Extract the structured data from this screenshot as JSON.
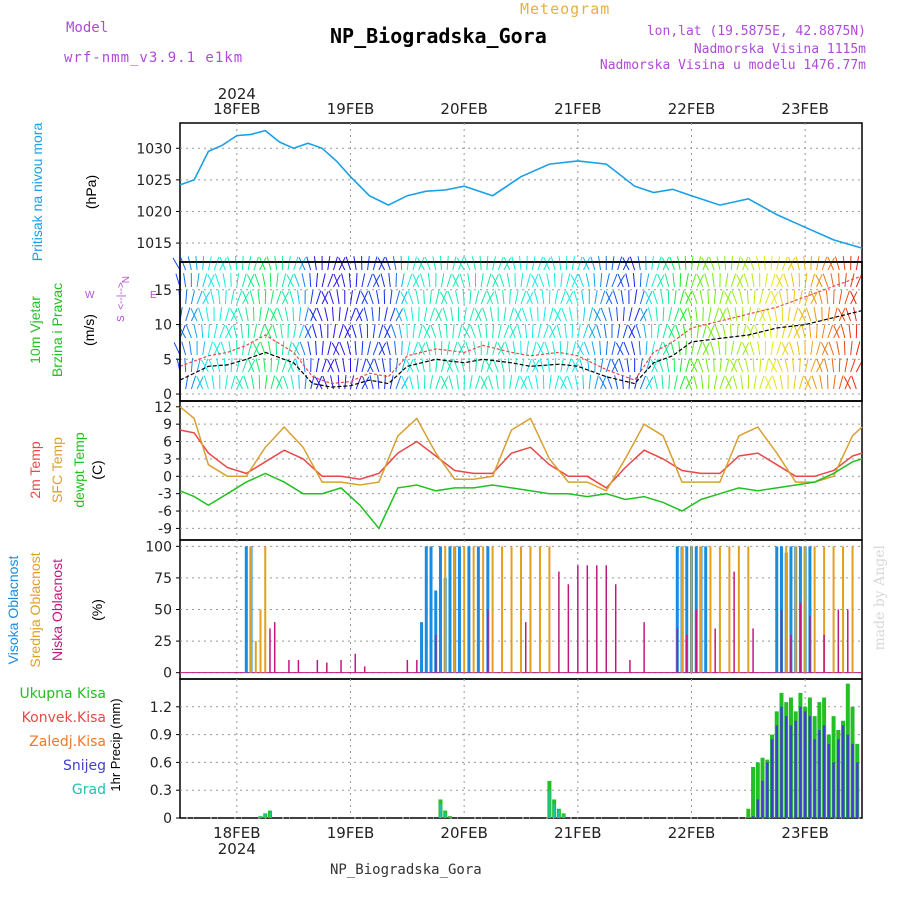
{
  "header": {
    "model_label": "Model",
    "model_value": "wrf-nmm_v3.9.1 e1km",
    "meteogram_label": "Meteogram",
    "station": "NP_Biogradska_Gora",
    "lonlat": "lon,lat (19.5875E, 42.8875N)",
    "elevation": "Nadmorska Visina 1115m",
    "elevation_model": "Nadmorska Visina u modelu 1476.77m"
  },
  "footer": {
    "station": "NP_Biogradska_Gora",
    "watermark": "made by Angel",
    "year": "2024"
  },
  "time_axis": {
    "year": "2024",
    "labels": [
      "18FEB",
      "19FEB",
      "20FEB",
      "21FEB",
      "22FEB",
      "23FEB"
    ]
  },
  "panel_labels": {
    "pressure": [
      "Pritisak na nivou mora",
      "(hPa)"
    ],
    "wind": [
      "10m Vjetar",
      "Brzina i Pravac",
      "(m/s)"
    ],
    "wind_compass": [
      "N",
      "W",
      "E",
      "S",
      "<--|-->"
    ],
    "temp": [
      "2m Temp",
      "SFC Temp",
      "dewpt Temp",
      "(C)"
    ],
    "cloud": [
      "Visoka Oblacnost",
      "Srednja Oblacnost",
      "Niska Oblacnost",
      "(%)"
    ],
    "precip": [
      "Ukupna Kisa",
      "Konvek.Kisa",
      "Zaledj.Kisa",
      "Snijeg",
      "Grad",
      "1hr Precip (mm)"
    ]
  },
  "colors": {
    "pressure": "#1aa0e6",
    "temp2m": "#e84848",
    "sfc": "#d8a030",
    "dew": "#22c022",
    "cloud_high": "#1a8ce0",
    "cloud_mid": "#e0a020",
    "cloud_low": "#c01880",
    "precip_total": "#22c022",
    "precip_conv": "#e84848",
    "precip_frz": "#f07828",
    "precip_snow": "#4040d0",
    "precip_hail": "#20c0b0",
    "purple_text": "#b04ad8"
  },
  "chart_data": [
    {
      "type": "line",
      "title": "NP_Biogradska_Gora",
      "ylabel": "(hPa)",
      "ylim": [
        1012,
        1034
      ],
      "yticks": [
        1015,
        1020,
        1025,
        1030
      ],
      "x_unit": "hours from 2024-02-17 12UTC",
      "series": [
        {
          "name": "Pritisak na nivou mora",
          "x": [
            0,
            3,
            6,
            9,
            12,
            15,
            18,
            21,
            24,
            27,
            30,
            33,
            36,
            40,
            44,
            48,
            52,
            56,
            60,
            66,
            72,
            78,
            84,
            90,
            96,
            100,
            104,
            108,
            114,
            120,
            126,
            132,
            138,
            144
          ],
          "values": [
            1024.2,
            1025,
            1029.5,
            1030.5,
            1032,
            1032.2,
            1032.8,
            1031,
            1030,
            1030.8,
            1030,
            1028,
            1025.5,
            1022.5,
            1021,
            1022.5,
            1023.2,
            1023.4,
            1024,
            1022.5,
            1025.5,
            1027.5,
            1028,
            1027.5,
            1024,
            1023,
            1023.5,
            1022.5,
            1021,
            1022,
            1019.5,
            1017.5,
            1015.5,
            1014.2
          ]
        }
      ]
    },
    {
      "type": "line",
      "ylabel": "(m/s)",
      "ylim": [
        -1,
        19
      ],
      "yticks": [
        0,
        5,
        10,
        15
      ],
      "x_unit": "hours from 2024-02-17 12UTC",
      "series": [
        {
          "name": "10m Vjetar",
          "x": [
            0,
            6,
            10,
            14,
            18,
            24,
            28,
            32,
            36,
            40,
            44,
            48,
            54,
            60,
            64,
            70,
            74,
            80,
            84,
            90,
            96,
            100,
            104,
            108,
            114,
            120,
            126,
            132,
            138,
            144
          ],
          "values": [
            2,
            4,
            4.2,
            5,
            6,
            4.5,
            1.5,
            1,
            1.2,
            2,
            1.5,
            4,
            5,
            4.5,
            5,
            4.5,
            4,
            4.3,
            4,
            2.5,
            1.5,
            4.5,
            5.5,
            7.5,
            8,
            8.5,
            9.5,
            10,
            11,
            12
          ]
        },
        {
          "name": "gust",
          "x": [
            0,
            6,
            10,
            14,
            18,
            24,
            28,
            32,
            36,
            40,
            44,
            48,
            54,
            60,
            64,
            70,
            74,
            80,
            84,
            90,
            96,
            100,
            104,
            108,
            114,
            120,
            126,
            132,
            138,
            144
          ],
          "values": [
            4,
            5.5,
            6,
            7,
            8.5,
            6,
            2.5,
            1.5,
            1.8,
            3,
            2.5,
            5.5,
            6.5,
            6,
            7,
            6,
            5.5,
            6,
            5.5,
            3.5,
            2,
            6,
            7.5,
            9.5,
            10.5,
            11.5,
            12.5,
            14,
            15.5,
            17
          ]
        }
      ]
    },
    {
      "type": "line",
      "ylabel": "(C)",
      "ylim": [
        -11,
        13
      ],
      "yticks": [
        -9,
        -6,
        -3,
        0,
        3,
        6,
        9,
        12
      ],
      "x_unit": "hours from 2024-02-17 12UTC",
      "series": [
        {
          "name": "2m Temp",
          "x": [
            0,
            3,
            6,
            10,
            14,
            18,
            22,
            26,
            30,
            34,
            38,
            42,
            46,
            50,
            54,
            58,
            62,
            66,
            70,
            74,
            78,
            82,
            86,
            90,
            94,
            98,
            102,
            106,
            110,
            114,
            118,
            122,
            126,
            130,
            134,
            138,
            142,
            144
          ],
          "values": [
            8,
            7.5,
            4,
            1.5,
            0.5,
            2.5,
            4.5,
            3,
            0,
            0,
            -0.5,
            0.5,
            4,
            6,
            3.5,
            1,
            0.5,
            0.5,
            4,
            5,
            2,
            0,
            0,
            -2,
            1.5,
            4.5,
            3,
            1,
            0.5,
            0.5,
            3.5,
            4,
            2,
            0,
            0,
            1,
            3.5,
            4
          ]
        },
        {
          "name": "SFC Temp",
          "x": [
            0,
            3,
            6,
            10,
            14,
            18,
            22,
            26,
            30,
            34,
            38,
            42,
            46,
            50,
            54,
            58,
            62,
            66,
            70,
            74,
            78,
            82,
            86,
            90,
            94,
            98,
            102,
            106,
            110,
            114,
            118,
            122,
            126,
            130,
            134,
            138,
            142,
            144
          ],
          "values": [
            12,
            10,
            2,
            0,
            0,
            5,
            8.5,
            5,
            -1,
            -1,
            -1.5,
            -1,
            7,
            10,
            4,
            -0.5,
            -0.5,
            0,
            8,
            10,
            3,
            -1,
            -1,
            -2.5,
            3,
            9,
            7,
            -1,
            -1,
            -1,
            7,
            8.5,
            4,
            -1,
            -1,
            0,
            7,
            8.5
          ]
        },
        {
          "name": "dewpt Temp",
          "x": [
            0,
            3,
            6,
            10,
            14,
            18,
            22,
            26,
            30,
            34,
            38,
            42,
            46,
            50,
            54,
            58,
            62,
            66,
            70,
            74,
            78,
            82,
            86,
            90,
            94,
            98,
            102,
            106,
            110,
            114,
            118,
            122,
            126,
            130,
            134,
            138,
            142,
            144
          ],
          "values": [
            -2.5,
            -3.5,
            -5,
            -3,
            -1,
            0.5,
            -1,
            -3,
            -3,
            -2,
            -5,
            -9,
            -2,
            -1.5,
            -2.5,
            -2,
            -2,
            -1.5,
            -2,
            -2.5,
            -3,
            -3,
            -3.5,
            -3,
            -4,
            -3.5,
            -4.5,
            -6,
            -4,
            -3,
            -2,
            -2.5,
            -2,
            -1.5,
            -1,
            0.5,
            2.5,
            3
          ]
        }
      ]
    },
    {
      "type": "bar",
      "ylabel": "(%)",
      "ylim": [
        -5,
        105
      ],
      "yticks": [
        0,
        25,
        50,
        75,
        100
      ],
      "x_unit": "hours from 2024-02-17 12UTC",
      "series": [
        {
          "name": "Visoka Oblacnost",
          "x": [
            14,
            15,
            51,
            52,
            53,
            54,
            55,
            56,
            57,
            58,
            59,
            61,
            63,
            65,
            105,
            106,
            107,
            108,
            109,
            110,
            111,
            126,
            127,
            128,
            129,
            130,
            131,
            132,
            133
          ],
          "values": [
            100,
            100,
            40,
            100,
            100,
            65,
            100,
            75,
            100,
            100,
            100,
            100,
            100,
            100,
            100,
            100,
            100,
            100,
            100,
            100,
            100,
            100,
            100,
            95,
            100,
            100,
            100,
            100,
            100
          ]
        },
        {
          "name": "Srednja Oblacnost",
          "x": [
            15,
            16,
            17,
            18,
            56,
            58,
            60,
            62,
            64,
            66,
            68,
            70,
            72,
            74,
            76,
            78,
            106,
            108,
            110,
            112,
            114,
            116,
            118,
            120,
            128,
            130,
            132,
            134,
            136,
            138,
            140,
            142
          ],
          "values": [
            100,
            25,
            50,
            100,
            100,
            100,
            100,
            100,
            100,
            100,
            100,
            100,
            100,
            100,
            100,
            100,
            100,
            100,
            100,
            100,
            100,
            100,
            100,
            100,
            100,
            100,
            100,
            100,
            100,
            100,
            100,
            100
          ]
        },
        {
          "name": "Niska Oblacnost",
          "x": [
            19,
            20,
            23,
            25,
            29,
            31,
            34,
            37,
            39,
            48,
            50,
            54,
            65,
            73,
            80,
            82,
            84,
            86,
            88,
            90,
            92,
            95,
            98,
            105,
            107,
            109,
            113,
            117,
            121,
            127,
            129,
            131,
            133,
            136,
            139,
            141
          ],
          "values": [
            35,
            40,
            10,
            10,
            10,
            8,
            10,
            15,
            5,
            10,
            10,
            30,
            50,
            40,
            80,
            70,
            85,
            85,
            85,
            85,
            70,
            10,
            40,
            35,
            30,
            50,
            35,
            80,
            35,
            50,
            30,
            55,
            45,
            30,
            50,
            50
          ]
        }
      ]
    },
    {
      "type": "bar",
      "ylabel": "1hr Precip (mm)",
      "ylim": [
        0,
        1.5
      ],
      "yticks": [
        0,
        0.3,
        0.6,
        0.9,
        1.2
      ],
      "x_unit": "hours from 2024-02-17 12UTC",
      "series": [
        {
          "name": "Ukupna Kisa",
          "x": [
            17,
            18,
            19,
            55,
            56,
            57,
            78,
            79,
            80,
            81,
            120,
            121,
            122,
            123,
            124,
            125,
            126,
            127,
            128,
            129,
            130,
            131,
            132,
            133,
            134,
            135,
            136,
            137,
            138,
            139,
            140,
            141,
            142,
            143
          ],
          "values": [
            0.02,
            0.05,
            0.08,
            0.2,
            0.08,
            0.02,
            0.4,
            0.2,
            0.1,
            0.05,
            0.1,
            0.55,
            0.6,
            0.65,
            0.63,
            0.9,
            1.15,
            1.35,
            1.25,
            1.3,
            1.15,
            1.35,
            1.2,
            1.3,
            1.1,
            1.25,
            1.3,
            0.9,
            1.1,
            0.95,
            1.05,
            1.45,
            1.2,
            0.8
          ]
        },
        {
          "name": "Snijeg",
          "x": [
            121,
            122,
            123,
            124,
            125,
            126,
            127,
            128,
            129,
            130,
            131,
            132,
            133,
            134,
            135,
            136,
            137,
            138,
            139,
            140,
            141,
            142,
            143
          ],
          "values": [
            0.02,
            0.2,
            0.4,
            0.6,
            0.85,
            1.0,
            1.2,
            1.1,
            1.0,
            1.05,
            1.2,
            1.15,
            1.1,
            0.85,
            0.95,
            1.0,
            0.8,
            0.6,
            0.85,
            1.0,
            0.9,
            0.8,
            0.6
          ]
        },
        {
          "name": "Grad",
          "x": [
            17,
            18,
            19,
            55,
            56,
            57,
            78,
            79,
            80,
            81
          ],
          "values": [
            0.02,
            0.05,
            0.06,
            0.15,
            0.06,
            0.01,
            0.3,
            0.15,
            0.08,
            0.03
          ]
        }
      ]
    }
  ]
}
